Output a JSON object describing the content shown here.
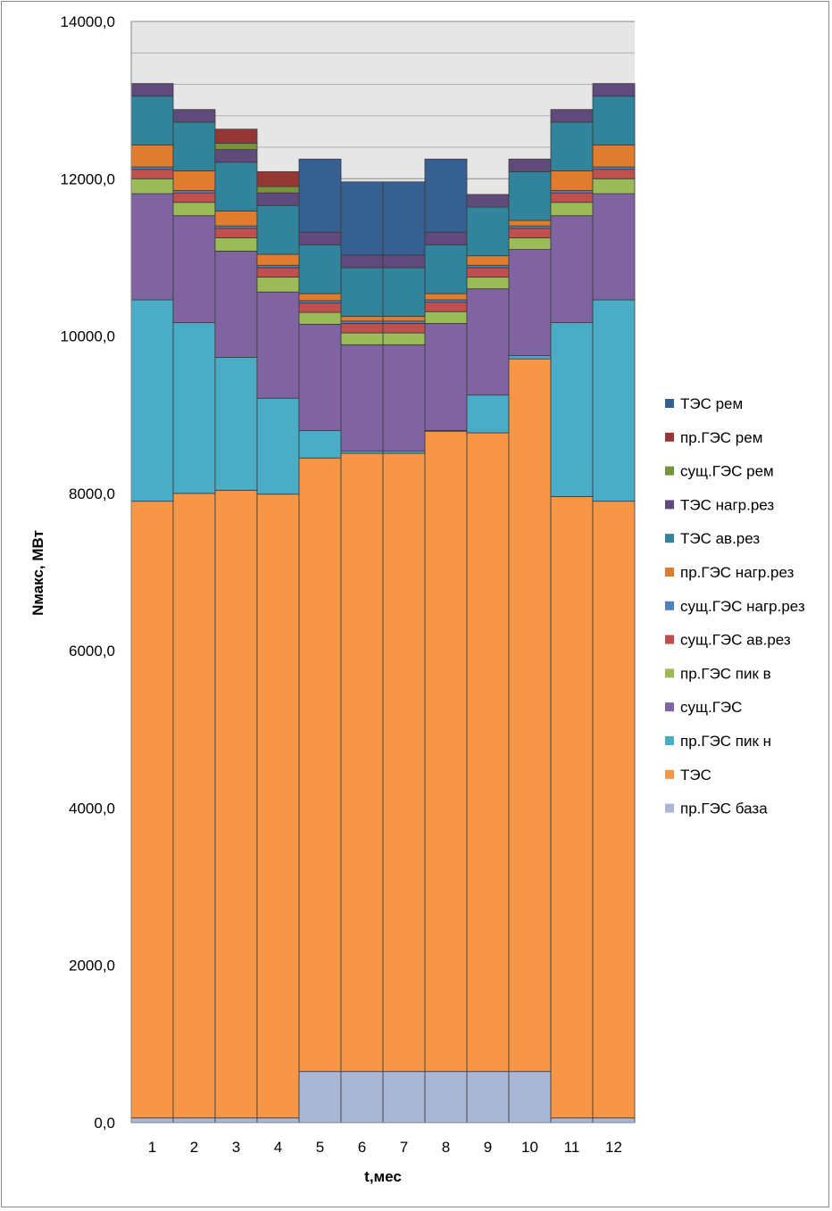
{
  "chart_data": {
    "type": "bar",
    "stacked": true,
    "xlabel": "t,мес",
    "ylabel": "Nмакс, МВт",
    "ylim": [
      0,
      14000
    ],
    "yticks": [
      0,
      2000,
      4000,
      6000,
      8000,
      10000,
      12000,
      14000
    ],
    "ytick_labels": [
      "0,0",
      "2000,0",
      "4000,0",
      "6000,0",
      "8000,0",
      "10000,0",
      "12000,0",
      "14000,0"
    ],
    "categories": [
      "1",
      "2",
      "3",
      "4",
      "5",
      "6",
      "7",
      "8",
      "9",
      "10",
      "11",
      "12"
    ],
    "grid": true,
    "legend_position": "right",
    "plot_background": "#e6e6e6",
    "series": [
      {
        "name": "пр.ГЭС база",
        "color": "#a9b6d6",
        "values": [
          60,
          60,
          60,
          60,
          650,
          650,
          650,
          650,
          650,
          650,
          60,
          60
        ]
      },
      {
        "name": "ТЭС",
        "color": "#f79646",
        "values": [
          7840,
          7940,
          7980,
          7930,
          7800,
          7860,
          7860,
          8140,
          8120,
          9060,
          7900,
          7840
        ]
      },
      {
        "name": "пр.ГЭС пик н",
        "color": "#4bacc6",
        "values": [
          2560,
          2170,
          1690,
          1220,
          350,
          30,
          30,
          10,
          480,
          40,
          2210,
          2560
        ]
      },
      {
        "name": "сущ.ГЭС",
        "color": "#8064a2",
        "values": [
          1350,
          1360,
          1350,
          1350,
          1350,
          1350,
          1350,
          1360,
          1350,
          1350,
          1360,
          1350
        ]
      },
      {
        "name": "пр.ГЭС пик в",
        "color": "#9bbb59",
        "values": [
          190,
          170,
          170,
          190,
          150,
          150,
          150,
          150,
          150,
          150,
          170,
          190
        ]
      },
      {
        "name": "сущ.ГЭС ав.рез",
        "color": "#c0504d",
        "values": [
          120,
          120,
          120,
          120,
          120,
          120,
          120,
          120,
          120,
          120,
          120,
          120
        ]
      },
      {
        "name": "сущ.ГЭС нагр.рез",
        "color": "#4f81bd",
        "values": [
          30,
          30,
          30,
          30,
          30,
          30,
          30,
          30,
          30,
          30,
          30,
          30
        ]
      },
      {
        "name": "пр.ГЭС нагр.рез",
        "color": "#e07c2e",
        "values": [
          280,
          250,
          190,
          140,
          90,
          60,
          60,
          80,
          120,
          70,
          250,
          280
        ]
      },
      {
        "name": "ТЭС ав.рез",
        "color": "#31849b",
        "values": [
          620,
          620,
          620,
          620,
          620,
          620,
          620,
          620,
          620,
          620,
          620,
          620
        ]
      },
      {
        "name": "ТЭС нагр.рез",
        "color": "#604a7b",
        "values": [
          160,
          160,
          160,
          160,
          160,
          160,
          160,
          160,
          160,
          160,
          160,
          160
        ]
      },
      {
        "name": "сущ.ГЭС рем",
        "color": "#77933c",
        "values": [
          0,
          0,
          80,
          80,
          0,
          0,
          0,
          0,
          0,
          0,
          0,
          0
        ]
      },
      {
        "name": "пр.ГЭС рем",
        "color": "#953735",
        "values": [
          0,
          0,
          180,
          190,
          0,
          0,
          0,
          0,
          0,
          0,
          0,
          0
        ]
      },
      {
        "name": "ТЭС рем",
        "color": "#366092",
        "values": [
          0,
          0,
          0,
          0,
          930,
          930,
          930,
          930,
          0,
          0,
          0,
          0
        ]
      }
    ]
  }
}
